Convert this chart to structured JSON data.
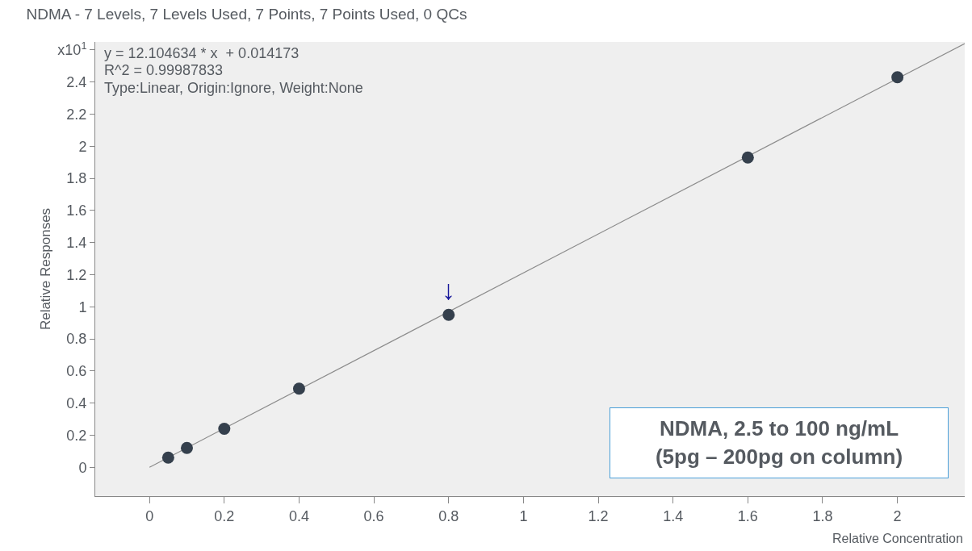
{
  "chart_data": {
    "type": "scatter",
    "title": "NDMA - 7 Levels, 7 Levels Used, 7 Points, 7 Points Used, 0 QCs",
    "xlabel": "Relative Concentration",
    "ylabel": "Relative Responses",
    "x": [
      0.05,
      0.1,
      0.2,
      0.4,
      0.8,
      1.6,
      2
    ],
    "series": [
      {
        "color": "#35404d",
        "values": [
          0.06,
          0.12,
          0.24,
          0.49,
          0.95,
          1.93,
          2.43
        ],
        "marker": "circle"
      },
      {
        "type": "line",
        "color": "#8c8c8c",
        "x": [
          0,
          2.18
        ],
        "values": [
          0,
          2.64
        ],
        "marker": "none",
        "line_style": "solid"
      }
    ],
    "xlim": [
      -0.145,
      2.18
    ],
    "ylim": [
      -0.18,
      2.65
    ],
    "xticks": [
      0,
      0.2,
      0.4,
      0.6,
      0.8,
      1,
      1.2,
      1.4,
      1.6,
      1.8,
      2
    ],
    "yticks": [
      0,
      0.2,
      0.4,
      0.6,
      0.8,
      1,
      1.2,
      1.4,
      1.6,
      1.8,
      2,
      2.2,
      2.4,
      {
        "value": 2.6,
        "label": "x10$^{1}$"
      }
    ],
    "grid": false,
    "annotations": [
      "y = 12.104634 * x  + 0.014173",
      "R^2 = 0.99987833",
      "Type:Linear, Origin:Ignore, Weight:None",
      {
        "text": "↓",
        "x": 0.8,
        "y": 0.95
      },
      "NDMA, 2.5 to 100 ng/mL\n(5pg – 200pg on column)"
    ]
  }
}
